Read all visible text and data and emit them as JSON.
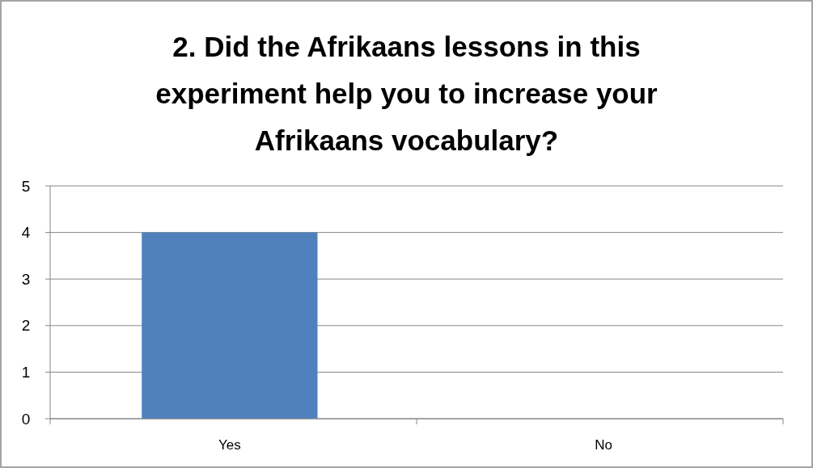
{
  "chart_data": {
    "type": "bar",
    "title": "2. Did the Afrikaans lessons in this experiment help you to increase your Afrikaans vocabulary?",
    "categories": [
      "Yes",
      "No"
    ],
    "series": [
      {
        "color": "#4f81bd",
        "values": [
          4,
          0
        ]
      }
    ],
    "ylim": [
      0,
      5
    ],
    "yticks": [
      0,
      1,
      2,
      3,
      4,
      5
    ],
    "grid": "y"
  }
}
